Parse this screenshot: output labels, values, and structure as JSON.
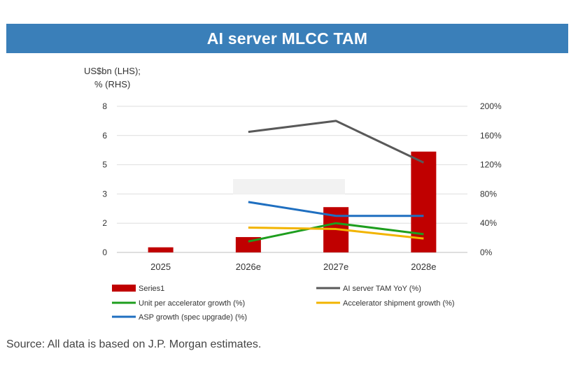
{
  "header": {
    "title": "AI server MLCC TAM"
  },
  "footer": {
    "source": "Source: All data is based on J.P. Morgan estimates."
  },
  "colors": {
    "banner": "#3a7fb9",
    "series1": "#c00000",
    "tam_yoy": "#595959",
    "unit_growth": "#1e9e1e",
    "shipment_growth": "#f2b400",
    "asp_growth": "#1f6fc0"
  },
  "chart_data": {
    "type": "bar",
    "ylabel_left": [
      "US$bn (LHS);",
      "% (RHS)"
    ],
    "categories": [
      "2025",
      "2026e",
      "2027e",
      "2028e"
    ],
    "y_left_ticks": [
      "0",
      "2",
      "3",
      "5",
      "6",
      "8"
    ],
    "y_right_ticks": [
      "0%",
      "40%",
      "80%",
      "120%",
      "160%",
      "200%"
    ],
    "ylim_right": [
      0,
      200
    ],
    "grid": true,
    "legend_position": "bottom",
    "series": [
      {
        "name": "Series1",
        "kind": "bar",
        "axis": "right",
        "values": [
          7,
          21,
          62,
          138
        ]
      },
      {
        "name": "AI server TAM YoY (%)",
        "kind": "line",
        "axis": "right",
        "values": [
          null,
          165,
          180,
          123
        ]
      },
      {
        "name": "Unit per accelerator growth (%)",
        "kind": "line",
        "axis": "right",
        "values": [
          null,
          15,
          40,
          25
        ]
      },
      {
        "name": "Accelerator shipment growth (%)",
        "kind": "line",
        "axis": "right",
        "values": [
          null,
          34,
          32,
          19
        ]
      },
      {
        "name": "ASP growth (spec upgrade) (%)",
        "kind": "line",
        "axis": "right",
        "values": [
          null,
          69,
          50,
          50
        ]
      }
    ]
  }
}
